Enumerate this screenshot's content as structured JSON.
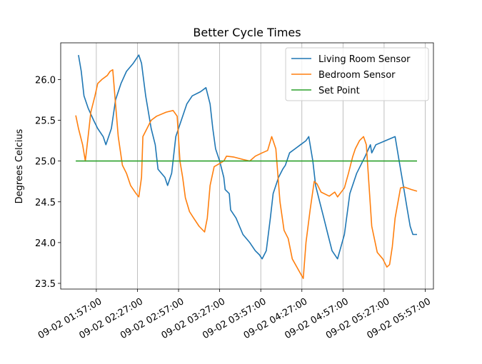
{
  "chart_data": {
    "type": "line",
    "title": "Better Cycle Times",
    "y_label": "Degrees Celcius",
    "xlim": [
      "09-02 01:31:00",
      "09-02 06:03:00"
    ],
    "xticks": [
      "09-02 01:57:00",
      "09-02 02:27:00",
      "09-02 02:57:00",
      "09-02 03:27:00",
      "09-02 03:57:00",
      "09-02 04:27:00",
      "09-02 04:57:00",
      "09-02 05:27:00",
      "09-02 05:57:00"
    ],
    "ylim": [
      23.43,
      26.45
    ],
    "yticks": [
      23.5,
      {
        "value": 24,
        "label": "24.0"
      },
      24.5,
      {
        "value": 25,
        "label": "25.0"
      },
      25.5,
      {
        "value": 26,
        "label": "26.0"
      }
    ],
    "grid": "x",
    "legend": "upper right",
    "series": [
      {
        "name": "Living Room Sensor",
        "color": "#1f77b4",
        "x": [
          "09-02 01:44:00",
          "09-02 01:46:00",
          "09-02 01:48:00",
          "09-02 01:51:00",
          "09-02 01:55:00",
          "09-02 01:58:00",
          "09-02 02:02:00",
          "09-02 02:04:00",
          "09-02 02:08:00",
          "09-02 02:11:00",
          "09-02 02:15:00",
          "09-02 02:19:00",
          "09-02 02:24:00",
          "09-02 02:28:00",
          "09-02 02:30:00",
          "09-02 02:33:00",
          "09-02 02:37:00",
          "09-02 02:40:00",
          "09-02 02:42:00",
          "09-02 02:47:00",
          "09-02 02:49:00",
          "09-02 02:52:00",
          "09-02 02:55:00",
          "09-02 02:59:00",
          "09-02 03:03:00",
          "09-02 03:07:00",
          "09-02 03:13:00",
          "09-02 03:17:00",
          "09-02 03:20:00",
          "09-02 03:22:00",
          "09-02 03:24:00",
          "09-02 03:27:00",
          "09-02 03:30:00",
          "09-02 03:31:00",
          "09-02 03:34:00",
          "09-02 03:35:00",
          "09-02 03:39:00",
          "09-02 03:44:00",
          "09-02 03:49:00",
          "09-02 03:53:00",
          "09-02 03:56:00",
          "09-02 03:58:00",
          "09-02 04:01:00",
          "09-02 04:04:00",
          "09-02 04:06:00",
          "09-02 04:10:00",
          "09-02 04:13:00",
          "09-02 04:15:00",
          "09-02 04:18:00",
          "09-02 04:22:00",
          "09-02 04:26:00",
          "09-02 04:30:00",
          "09-02 04:32:00",
          "09-02 04:35:00",
          "09-02 04:37:00",
          "09-02 04:40:00",
          "09-02 04:43:00",
          "09-02 04:46:00",
          "09-02 04:49:00",
          "09-02 04:53:00",
          "09-02 04:58:00",
          "09-02 05:02:00",
          "09-02 05:07:00",
          "09-02 05:13:00",
          "09-02 05:17:00",
          "09-02 05:18:00",
          "09-02 05:21:00",
          "09-02 05:28:00",
          "09-02 05:35:00",
          "09-02 05:38:00",
          "09-02 05:41:00",
          "09-02 05:44:00",
          "09-02 05:46:00",
          "09-02 05:48:00",
          "09-02 05:51:00"
        ],
        "values": [
          26.3,
          26.1,
          25.8,
          25.65,
          25.5,
          25.4,
          25.3,
          25.2,
          25.4,
          25.75,
          25.95,
          26.1,
          26.2,
          26.3,
          26.2,
          25.8,
          25.4,
          25.2,
          24.9,
          24.8,
          24.7,
          24.85,
          25.3,
          25.5,
          25.7,
          25.8,
          25.85,
          25.9,
          25.7,
          25.4,
          25.15,
          25.0,
          24.8,
          24.65,
          24.6,
          24.4,
          24.3,
          24.1,
          24.0,
          23.9,
          23.85,
          23.8,
          23.9,
          24.3,
          24.6,
          24.8,
          24.9,
          24.95,
          25.1,
          25.15,
          25.2,
          25.25,
          25.3,
          25.0,
          24.7,
          24.5,
          24.3,
          24.1,
          23.9,
          23.8,
          24.1,
          24.6,
          24.85,
          25.05,
          25.2,
          25.1,
          25.2,
          25.25,
          25.3,
          25.0,
          24.7,
          24.4,
          24.2,
          24.1,
          24.1
        ]
      },
      {
        "name": "Bedroom Sensor",
        "color": "#ff7f0e",
        "x": [
          "09-02 01:42:00",
          "09-02 01:44:00",
          "09-02 01:47:00",
          "09-02 01:49:00",
          "09-02 01:51:00",
          "09-02 01:53:00",
          "09-02 01:56:00",
          "09-02 01:58:00",
          "09-02 02:01:00",
          "09-02 02:05:00",
          "09-02 02:07:00",
          "09-02 02:09:00",
          "09-02 02:11:00",
          "09-02 02:13:00",
          "09-02 02:16:00",
          "09-02 02:19:00",
          "09-02 02:22:00",
          "09-02 02:26:00",
          "09-02 02:28:00",
          "09-02 02:30:00",
          "09-02 02:31:00",
          "09-02 02:34:00",
          "09-02 02:37:00",
          "09-02 02:41:00",
          "09-02 02:48:00",
          "09-02 02:53:00",
          "09-02 02:56:00",
          "09-02 02:58:00",
          "09-02 03:00:00",
          "09-02 03:02:00",
          "09-02 03:05:00",
          "09-02 03:08:00",
          "09-02 03:12:00",
          "09-02 03:16:00",
          "09-02 03:18:00",
          "09-02 03:20:00",
          "09-02 03:23:00",
          "09-02 03:27:00",
          "09-02 03:30:00",
          "09-02 03:32:00",
          "09-02 03:37:00",
          "09-02 03:44:00",
          "09-02 03:49:00",
          "09-02 03:53:00",
          "09-02 03:58:00",
          "09-02 04:02:00",
          "09-02 04:05:00",
          "09-02 04:06:00",
          "09-02 04:08:00",
          "09-02 04:11:00",
          "09-02 04:14:00",
          "09-02 04:17:00",
          "09-02 04:20:00",
          "09-02 04:25:00",
          "09-02 04:28:00",
          "09-02 04:30:00",
          "09-02 04:33:00",
          "09-02 04:36:00",
          "09-02 04:38:00",
          "09-02 04:41:00",
          "09-02 04:47:00",
          "09-02 04:51:00",
          "09-02 04:53:00",
          "09-02 04:58:00",
          "09-02 05:01:00",
          "09-02 05:04:00",
          "09-02 05:06:00",
          "09-02 05:09:00",
          "09-02 05:12:00",
          "09-02 05:14:00",
          "09-02 05:16:00",
          "09-02 05:18:00",
          "09-02 05:22:00",
          "09-02 05:26:00",
          "09-02 05:29:00",
          "09-02 05:31:00",
          "09-02 05:33:00",
          "09-02 05:35:00",
          "09-02 05:39:00",
          "09-02 05:42:00",
          "09-02 05:47:00",
          "09-02 05:51:00"
        ],
        "values": [
          25.56,
          25.4,
          25.2,
          25.0,
          25.3,
          25.6,
          25.8,
          25.95,
          26.0,
          26.05,
          26.1,
          26.12,
          25.7,
          25.3,
          24.95,
          24.85,
          24.7,
          24.6,
          24.56,
          24.8,
          25.3,
          25.4,
          25.5,
          25.55,
          25.6,
          25.62,
          25.55,
          25.0,
          24.8,
          24.55,
          24.38,
          24.3,
          24.2,
          24.13,
          24.3,
          24.7,
          24.93,
          24.97,
          25.0,
          25.06,
          25.05,
          25.02,
          25.0,
          25.06,
          25.1,
          25.13,
          25.3,
          25.25,
          25.15,
          24.5,
          24.15,
          24.05,
          23.8,
          23.65,
          23.56,
          24.0,
          24.4,
          24.75,
          24.72,
          24.62,
          24.57,
          24.62,
          24.56,
          24.67,
          24.85,
          25.05,
          25.15,
          25.25,
          25.3,
          25.2,
          24.7,
          24.2,
          23.88,
          23.8,
          23.7,
          23.73,
          23.95,
          24.3,
          24.67,
          24.68,
          24.65,
          24.63
        ]
      },
      {
        "name": "Set Point",
        "color": "#2ca02c",
        "x": [
          "09-02 01:42:00",
          "09-02 05:51:00"
        ],
        "values": [
          25.0,
          25.0
        ]
      }
    ]
  }
}
